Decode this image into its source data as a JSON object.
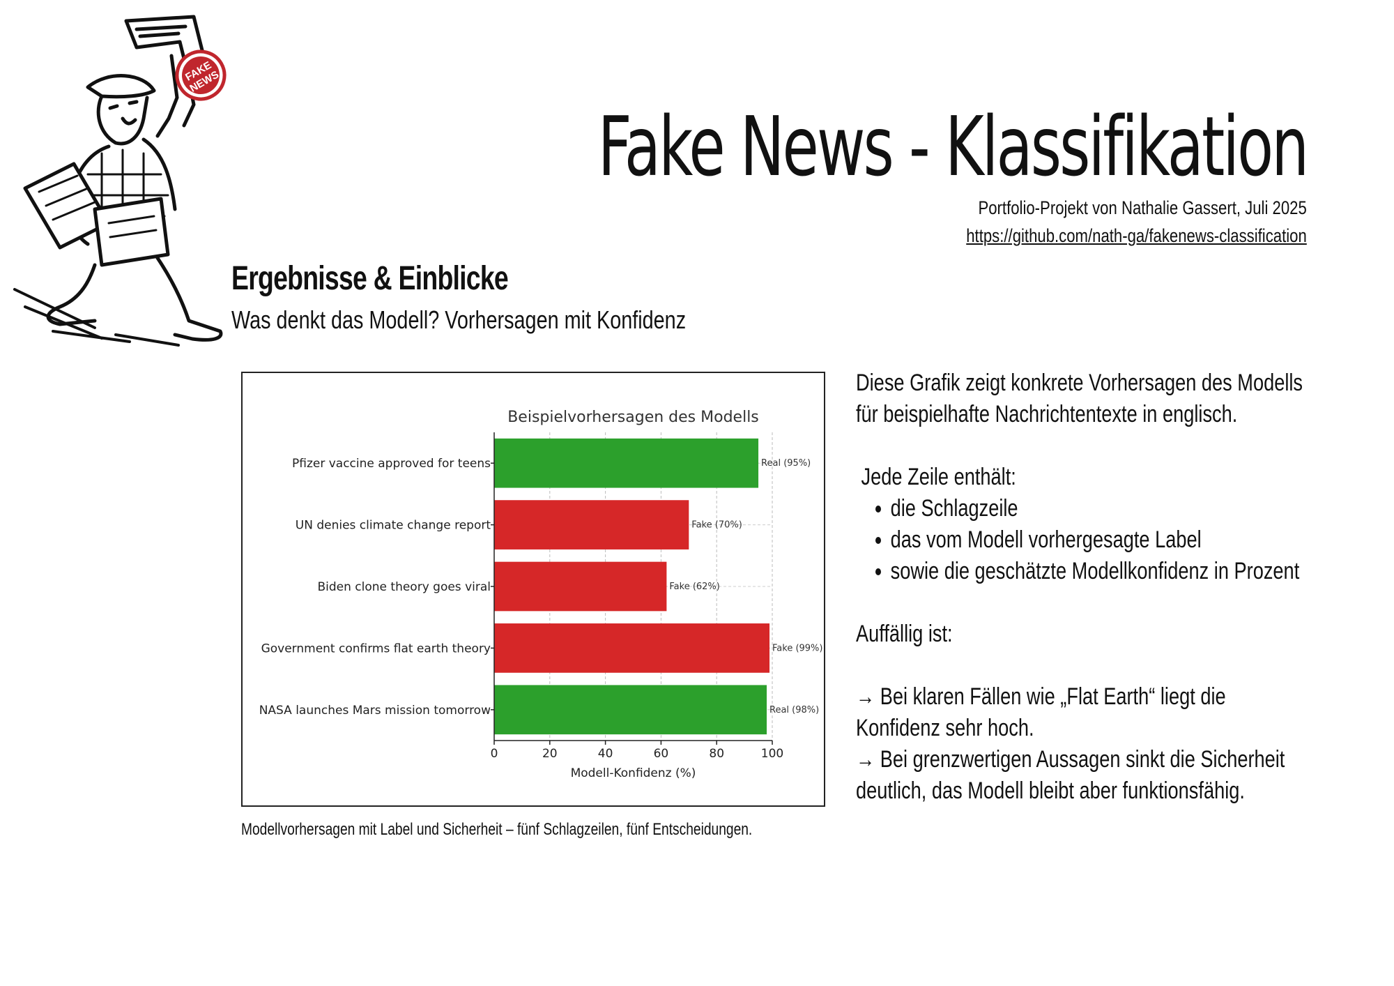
{
  "header": {
    "title": "Fake News - Klassifikation",
    "author_line": "Portfolio-Projekt von Nathalie Gassert, Juli 2025",
    "repo_link": "https://github.com/nath-ga/fakenews-classification"
  },
  "illustration": {
    "icon": "newsboy-illustration",
    "stamp_text": "FAKE NEWS"
  },
  "section": {
    "heading": "Ergebnisse & Einblicke",
    "subheading": "Was denkt das Modell? Vorhersagen mit Konfidenz"
  },
  "chart_data": {
    "type": "bar",
    "orientation": "horizontal",
    "title": "Beispielvorhersagen des Modells",
    "xlabel": "Modell-Konfidenz (%)",
    "ylabel": "",
    "xlim": [
      0,
      100
    ],
    "xticks": [
      0,
      20,
      40,
      60,
      80,
      100
    ],
    "grid": true,
    "categories": [
      "Pfizer vaccine approved for teens",
      "UN denies climate change report",
      "Biden clone theory goes viral",
      "Government confirms flat earth theory",
      "NASA launches Mars mission tomorrow"
    ],
    "values": [
      95,
      70,
      62,
      99,
      98
    ],
    "labels": [
      "Real",
      "Fake",
      "Fake",
      "Fake",
      "Real"
    ],
    "data_labels": [
      "Real (95%)",
      "Fake (70%)",
      "Fake (62%)",
      "Fake (99%)",
      "Real (98%)"
    ],
    "colors": {
      "Real": "#2ca02c",
      "Fake": "#d62728"
    }
  },
  "caption": "Modellvorhersagen mit Label und Sicherheit – fünf Schlagzeilen, fünf Entscheidungen.",
  "explanation": {
    "intro_line1": "Diese Grafik zeigt konkrete Vorhersagen des Modells",
    "intro_line2": "für beispielhafte Nachrichtentexte in englisch.",
    "list_heading": " Jede Zeile enthält:",
    "bullets": [
      "die Schlagzeile",
      "das vom Modell vorhergesagte Label",
      "sowie die geschätzte Modellkonfidenz in Prozent"
    ],
    "notable_heading": "Auffällig ist:",
    "point1_line1": "→ Bei klaren Fällen wie „Flat Earth“ liegt die",
    "point1_line2": "Konfidenz sehr hoch.",
    "point2_line1": "→ Bei grenzwertigen Aussagen sinkt die Sicherheit",
    "point2_line2": "deutlich, das Modell bleibt aber funktionsfähig."
  }
}
